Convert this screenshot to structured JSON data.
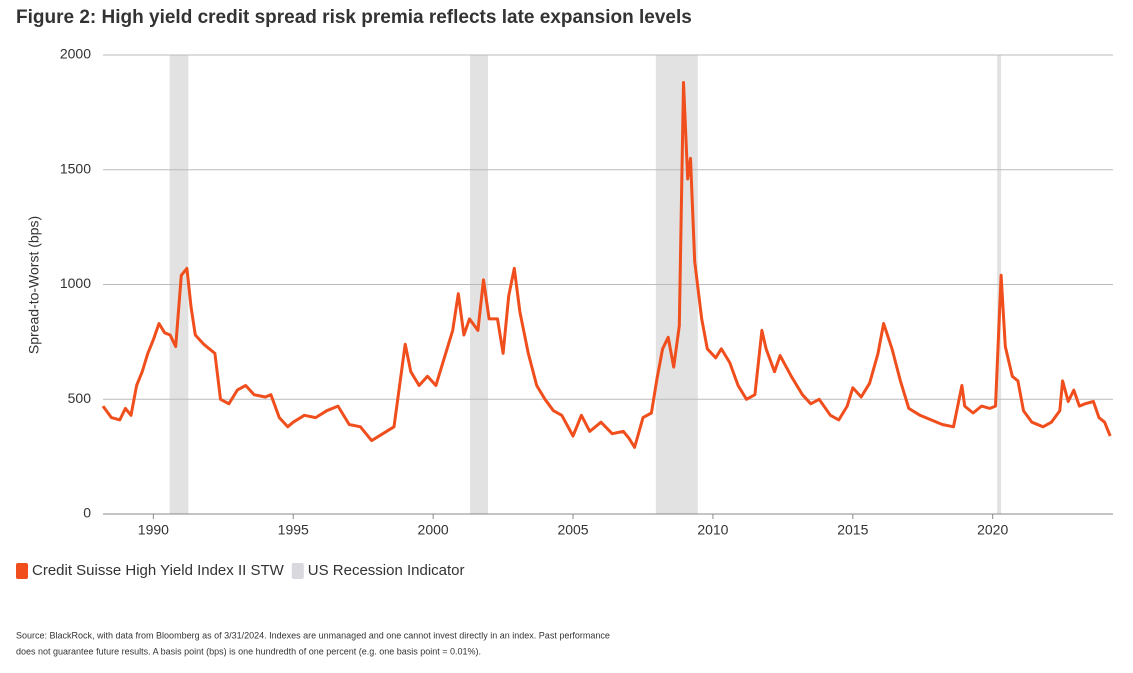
{
  "chart_data": {
    "type": "line",
    "title": "Figure 2: High yield credit spread risk premia reflects late expansion levels",
    "y_label": "Spread-to-Worst (bps)",
    "xlim": [
      1988.2,
      2024.3
    ],
    "xticks": [
      1990,
      1995,
      2000,
      2005,
      2010,
      2015,
      2020
    ],
    "ylim": [
      0,
      2000
    ],
    "yticks": [
      0,
      500,
      1000,
      1500,
      2000
    ],
    "grid": true,
    "x": [
      1988.2,
      1988.5,
      1988.8,
      1989.0,
      1989.2,
      1989.4,
      1989.6,
      1989.8,
      1990.0,
      1990.2,
      1990.4,
      1990.6,
      1990.8,
      1991.0,
      1991.2,
      1991.35,
      1991.5,
      1991.8,
      1992.0,
      1992.2,
      1992.4,
      1992.7,
      1993.0,
      1993.3,
      1993.6,
      1994.0,
      1994.2,
      1994.5,
      1994.8,
      1995.0,
      1995.4,
      1995.8,
      1996.2,
      1996.6,
      1997.0,
      1997.4,
      1997.8,
      1998.2,
      1998.6,
      1998.8,
      1999.0,
      1999.2,
      1999.5,
      1999.8,
      2000.1,
      2000.4,
      2000.7,
      2000.9,
      2001.1,
      2001.3,
      2001.6,
      2001.8,
      2002.0,
      2002.3,
      2002.5,
      2002.7,
      2002.9,
      2003.1,
      2003.4,
      2003.7,
      2004.0,
      2004.3,
      2004.6,
      2005.0,
      2005.3,
      2005.6,
      2006.0,
      2006.4,
      2006.8,
      2007.0,
      2007.2,
      2007.5,
      2007.8,
      2008.0,
      2008.2,
      2008.4,
      2008.6,
      2008.8,
      2008.95,
      2009.1,
      2009.2,
      2009.35,
      2009.6,
      2009.8,
      2010.1,
      2010.3,
      2010.6,
      2010.9,
      2011.2,
      2011.5,
      2011.75,
      2011.9,
      2012.2,
      2012.4,
      2012.8,
      2013.2,
      2013.5,
      2013.8,
      2014.2,
      2014.5,
      2014.8,
      2015.0,
      2015.3,
      2015.6,
      2015.9,
      2016.1,
      2016.4,
      2016.7,
      2017.0,
      2017.4,
      2017.8,
      2018.2,
      2018.6,
      2018.9,
      2019.0,
      2019.3,
      2019.6,
      2019.9,
      2020.1,
      2020.3,
      2020.45,
      2020.7,
      2020.9,
      2021.1,
      2021.4,
      2021.8,
      2022.1,
      2022.4,
      2022.5,
      2022.7,
      2022.9,
      2023.1,
      2023.3,
      2023.6,
      2023.8,
      2024.0,
      2024.2
    ],
    "series": [
      {
        "name": "Credit Suisse High Yield Index II STW",
        "color": "#f04e1c",
        "values": [
          470,
          420,
          410,
          460,
          430,
          560,
          620,
          700,
          760,
          830,
          790,
          780,
          730,
          1040,
          1070,
          900,
          780,
          740,
          720,
          700,
          500,
          480,
          540,
          560,
          520,
          510,
          520,
          420,
          380,
          400,
          430,
          420,
          450,
          470,
          390,
          380,
          320,
          350,
          380,
          560,
          740,
          620,
          560,
          600,
          560,
          680,
          800,
          960,
          780,
          850,
          800,
          1020,
          850,
          850,
          700,
          950,
          1070,
          880,
          700,
          560,
          500,
          450,
          430,
          340,
          430,
          360,
          400,
          350,
          360,
          330,
          290,
          420,
          440,
          590,
          720,
          770,
          640,
          820,
          1880,
          1460,
          1550,
          1100,
          850,
          720,
          680,
          720,
          660,
          560,
          500,
          520,
          800,
          720,
          620,
          690,
          600,
          520,
          480,
          500,
          430,
          410,
          470,
          550,
          510,
          570,
          700,
          830,
          720,
          580,
          460,
          430,
          410,
          390,
          380,
          560,
          470,
          440,
          470,
          460,
          470,
          1040,
          730,
          600,
          580,
          450,
          400,
          380,
          400,
          450,
          580,
          490,
          540,
          470,
          480,
          490,
          420,
          400,
          340
        ]
      }
    ],
    "recessions": {
      "name": "US Recession Indicator",
      "color": "#e2e2e2",
      "periods": [
        [
          1990.58,
          1991.25
        ],
        [
          2001.32,
          2001.96
        ],
        [
          2007.96,
          2009.46
        ],
        [
          2020.16,
          2020.3
        ]
      ]
    },
    "source": [
      "Source: BlackRock, with data from Bloomberg as of 3/31/2024. Indexes are unmanaged and one cannot invest directly in an index. Past performance",
      "does not guarantee future results. A basis point (bps) is one hundredth of one percent (e.g. one basis point = 0.01%)."
    ]
  }
}
